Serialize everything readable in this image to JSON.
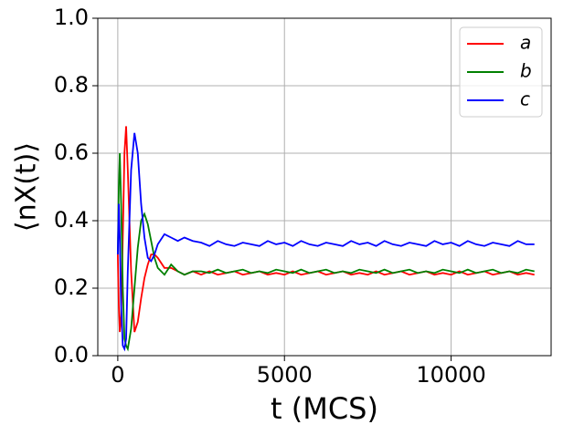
{
  "chart_data": {
    "type": "line",
    "xlabel": "t (MCS)",
    "ylabel": "⟨nX(t)⟩",
    "x": [
      0,
      30,
      60,
      100,
      150,
      200,
      250,
      300,
      400,
      500,
      600,
      700,
      800,
      900,
      1000,
      1100,
      1200,
      1400,
      1600,
      1800,
      2000,
      2250,
      2500,
      2750,
      3000,
      3250,
      3500,
      3750,
      4000,
      4250,
      4500,
      4750,
      5000,
      5250,
      5500,
      5750,
      6000,
      6250,
      6500,
      6750,
      7000,
      7250,
      7500,
      7750,
      8000,
      8250,
      8500,
      8750,
      9000,
      9250,
      9500,
      9750,
      10000,
      10250,
      10500,
      10750,
      11000,
      11250,
      11500,
      11750,
      12000,
      12250,
      12500
    ],
    "series": [
      {
        "name": "a",
        "color": "#ff0000",
        "values": [
          0.3,
          0.15,
          0.07,
          0.12,
          0.35,
          0.6,
          0.68,
          0.55,
          0.25,
          0.07,
          0.1,
          0.17,
          0.23,
          0.27,
          0.3,
          0.3,
          0.29,
          0.26,
          0.26,
          0.25,
          0.24,
          0.25,
          0.24,
          0.25,
          0.24,
          0.245,
          0.25,
          0.24,
          0.245,
          0.25,
          0.24,
          0.245,
          0.24,
          0.25,
          0.24,
          0.245,
          0.25,
          0.24,
          0.245,
          0.25,
          0.24,
          0.245,
          0.24,
          0.25,
          0.24,
          0.245,
          0.25,
          0.24,
          0.245,
          0.25,
          0.24,
          0.245,
          0.24,
          0.25,
          0.24,
          0.245,
          0.25,
          0.24,
          0.245,
          0.25,
          0.24,
          0.245,
          0.24
        ]
      },
      {
        "name": "b",
        "color": "#008000",
        "values": [
          0.3,
          0.5,
          0.6,
          0.45,
          0.2,
          0.05,
          0.03,
          0.02,
          0.08,
          0.2,
          0.32,
          0.4,
          0.42,
          0.39,
          0.34,
          0.29,
          0.26,
          0.24,
          0.27,
          0.25,
          0.24,
          0.25,
          0.25,
          0.245,
          0.255,
          0.245,
          0.25,
          0.255,
          0.245,
          0.25,
          0.245,
          0.255,
          0.25,
          0.245,
          0.255,
          0.245,
          0.25,
          0.255,
          0.245,
          0.25,
          0.245,
          0.255,
          0.25,
          0.245,
          0.255,
          0.245,
          0.25,
          0.255,
          0.245,
          0.25,
          0.245,
          0.255,
          0.25,
          0.245,
          0.255,
          0.245,
          0.25,
          0.255,
          0.245,
          0.25,
          0.245,
          0.255,
          0.25
        ]
      },
      {
        "name": "c",
        "color": "#0000ff",
        "values": [
          0.3,
          0.45,
          0.35,
          0.15,
          0.03,
          0.02,
          0.05,
          0.25,
          0.55,
          0.66,
          0.6,
          0.45,
          0.35,
          0.29,
          0.28,
          0.3,
          0.33,
          0.36,
          0.35,
          0.34,
          0.35,
          0.34,
          0.335,
          0.325,
          0.34,
          0.33,
          0.325,
          0.335,
          0.33,
          0.325,
          0.34,
          0.33,
          0.335,
          0.325,
          0.34,
          0.33,
          0.325,
          0.335,
          0.33,
          0.325,
          0.34,
          0.33,
          0.335,
          0.325,
          0.34,
          0.33,
          0.325,
          0.335,
          0.33,
          0.325,
          0.34,
          0.33,
          0.335,
          0.325,
          0.34,
          0.33,
          0.325,
          0.335,
          0.33,
          0.325,
          0.34,
          0.33,
          0.33
        ]
      }
    ],
    "xlim": [
      -600,
      13000
    ],
    "ylim": [
      0,
      1
    ],
    "xticks": [
      0,
      5000,
      10000
    ],
    "yticks": [
      {
        "value": 0,
        "label": "0.0"
      },
      0.2,
      0.4,
      0.6,
      0.8,
      {
        "value": 1,
        "label": "1.0"
      }
    ],
    "grid": true,
    "legend": "upper right"
  }
}
